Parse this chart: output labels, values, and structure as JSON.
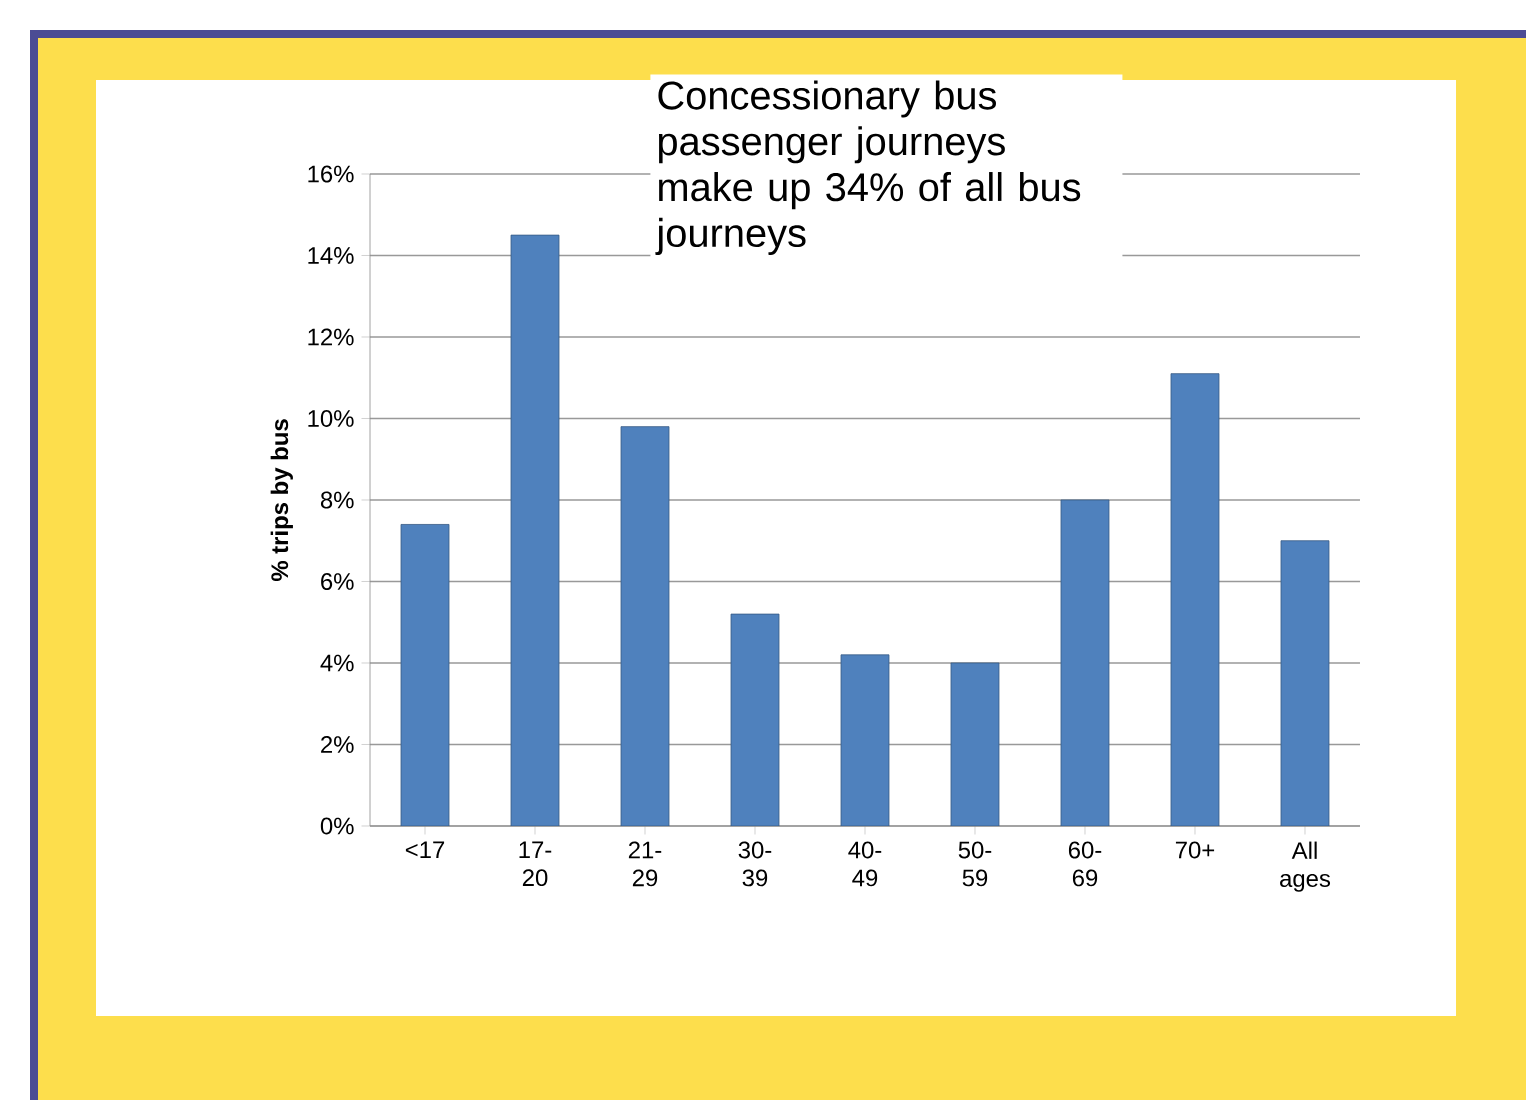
{
  "chart_data": {
    "type": "bar",
    "categories": [
      "<17",
      "17-20",
      "21-29",
      "30-39",
      "40-49",
      "50-59",
      "60-69",
      "70+",
      "All ages"
    ],
    "values": [
      7.4,
      14.5,
      9.8,
      5.2,
      4.2,
      4.0,
      8.0,
      11.1,
      7.0
    ],
    "color": "#4f81bd",
    "ylabel": "% trips by bus",
    "ylim": [
      0,
      16
    ],
    "yticks": [
      {
        "value": 0,
        "label": "0%"
      },
      {
        "value": 2,
        "label": "2%"
      },
      {
        "value": 4,
        "label": "4%"
      },
      {
        "value": 6,
        "label": "6%"
      },
      {
        "value": 8,
        "label": "8%"
      },
      {
        "value": 10,
        "label": "10%"
      },
      {
        "value": 12,
        "label": "12%"
      },
      {
        "value": 14,
        "label": "14%"
      },
      {
        "value": 16,
        "label": "16%"
      }
    ],
    "grid": "y",
    "annotations": [
      "Concessionary bus passenger journeys make up 34% of all bus journeys"
    ]
  }
}
